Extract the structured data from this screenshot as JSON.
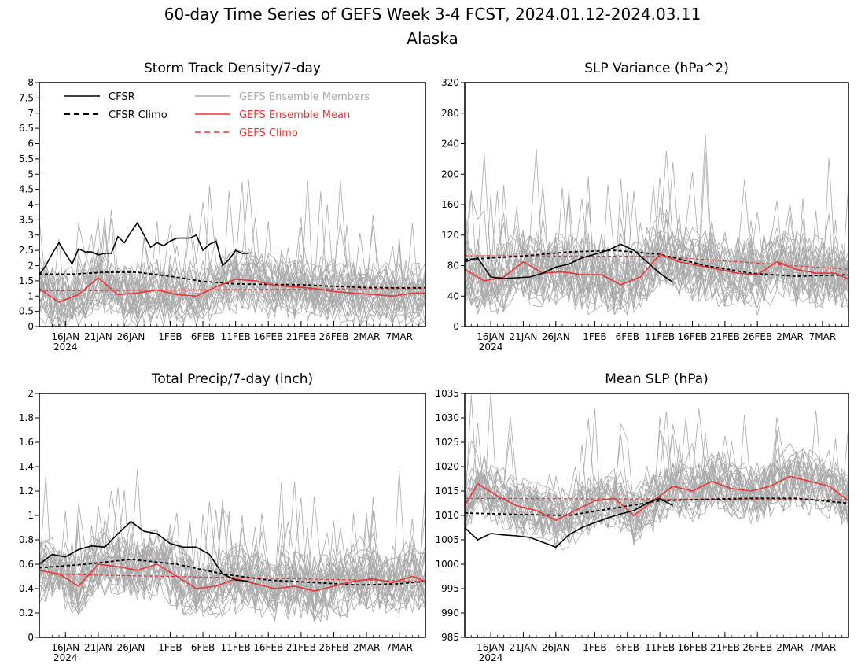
{
  "title": "60-day Time Series of GEFS Week 3-4 FCST, 2024.01.12-2024.03.11",
  "subtitle": "Alaska",
  "colors": {
    "cfsr": "#000000",
    "members": "#aaaaaa",
    "ensemble_mean": "#ee3333",
    "gefs_climo": "#ee3333",
    "frame": "#000000"
  },
  "legend": {
    "cfsr": "CFSR",
    "cfsr_climo": "CFSR Climo",
    "members": "GEFS Ensemble Members",
    "ensemble_mean": "GEFS Ensemble Mean",
    "gefs_climo": "GEFS Climo"
  },
  "x_axis": {
    "days": 60,
    "start_date": "2024-01-12",
    "tick_labels": [
      "16JAN",
      "21JAN",
      "26JAN",
      "1FEB",
      "6FEB",
      "11FEB",
      "16FEB",
      "21FEB",
      "26FEB",
      "2MAR",
      "7MAR"
    ],
    "tick_dates": [
      "2024-01-16",
      "2024-01-21",
      "2024-01-26",
      "2024-02-01",
      "2024-02-06",
      "2024-02-11",
      "2024-02-16",
      "2024-02-21",
      "2024-02-26",
      "2024-03-02",
      "2024-03-07"
    ],
    "year_label": "2024"
  },
  "chart_data": [
    {
      "type": "line",
      "title": "Storm Track Density/7-day",
      "ylim": [
        0,
        8
      ],
      "yticks": [
        "0",
        "0.5",
        "1",
        "1.5",
        "2",
        "2.5",
        "3",
        "3.5",
        "4",
        "4.5",
        "5",
        "5.5",
        "6",
        "6.5",
        "7",
        "7.5",
        "8"
      ],
      "legend_placement": "top-left",
      "members": {
        "count": 30,
        "mean_ref": "ensemble_mean",
        "spread": 0.85,
        "min": 0
      },
      "series": [
        {
          "key": "cfsr",
          "name": "CFSR",
          "x": [
            "2024-01-12",
            "2024-01-13",
            "2024-01-14",
            "2024-01-15",
            "2024-01-16",
            "2024-01-17",
            "2024-01-18",
            "2024-01-19",
            "2024-01-20",
            "2024-01-21",
            "2024-01-22",
            "2024-01-23",
            "2024-01-24",
            "2024-01-25",
            "2024-01-26",
            "2024-01-27",
            "2024-01-28",
            "2024-01-29",
            "2024-01-30",
            "2024-01-31",
            "2024-02-01",
            "2024-02-02",
            "2024-02-03",
            "2024-02-04",
            "2024-02-05",
            "2024-02-06",
            "2024-02-07",
            "2024-02-08",
            "2024-02-09",
            "2024-02-10",
            "2024-02-11",
            "2024-02-12",
            "2024-02-13"
          ],
          "y": [
            1.7,
            2.0,
            2.4,
            2.75,
            2.4,
            2.05,
            2.55,
            2.45,
            2.45,
            2.35,
            2.4,
            2.4,
            2.95,
            2.75,
            3.1,
            3.4,
            3.0,
            2.6,
            2.75,
            2.65,
            2.8,
            2.9,
            2.9,
            2.9,
            3.0,
            2.5,
            2.7,
            2.8,
            2.0,
            2.2,
            2.5,
            2.4,
            2.4
          ]
        },
        {
          "key": "cfsr_climo",
          "name": "CFSR Climo",
          "x": [
            "2024-01-12",
            "2024-01-17",
            "2024-01-22",
            "2024-01-27",
            "2024-02-01",
            "2024-02-06",
            "2024-02-11",
            "2024-02-16",
            "2024-02-21",
            "2024-02-26",
            "2024-03-02",
            "2024-03-07",
            "2024-03-11"
          ],
          "y": [
            1.72,
            1.72,
            1.78,
            1.78,
            1.65,
            1.48,
            1.4,
            1.38,
            1.37,
            1.32,
            1.28,
            1.27,
            1.27
          ]
        },
        {
          "key": "ensemble_mean",
          "name": "GEFS Ensemble Mean",
          "x": [
            "2024-01-12",
            "2024-01-15",
            "2024-01-18",
            "2024-01-21",
            "2024-01-24",
            "2024-01-27",
            "2024-01-30",
            "2024-02-02",
            "2024-02-05",
            "2024-02-08",
            "2024-02-11",
            "2024-02-14",
            "2024-02-17",
            "2024-02-20",
            "2024-02-23",
            "2024-02-26",
            "2024-02-29",
            "2024-03-03",
            "2024-03-06",
            "2024-03-09",
            "2024-03-11"
          ],
          "y": [
            1.25,
            0.8,
            1.05,
            1.6,
            1.05,
            1.1,
            1.2,
            1.05,
            1.0,
            1.3,
            1.55,
            1.5,
            1.35,
            1.3,
            1.25,
            1.15,
            1.1,
            1.05,
            1.0,
            1.1,
            1.1
          ]
        },
        {
          "key": "gefs_climo",
          "name": "GEFS Climo",
          "x": [
            "2024-01-12",
            "2024-03-11"
          ],
          "y": [
            1.17,
            1.25
          ]
        }
      ]
    },
    {
      "type": "line",
      "title": "SLP Variance (hPa^2)",
      "ylim": [
        0,
        320
      ],
      "yticks": [
        "0",
        "40",
        "80",
        "120",
        "160",
        "200",
        "240",
        "280",
        "320"
      ],
      "members": {
        "count": 30,
        "mean_ref": "ensemble_mean",
        "spread": 40,
        "min": 15
      },
      "series": [
        {
          "key": "cfsr",
          "name": "CFSR",
          "x": [
            "2024-01-12",
            "2024-01-14",
            "2024-01-16",
            "2024-01-18",
            "2024-01-20",
            "2024-01-22",
            "2024-01-24",
            "2024-01-26",
            "2024-01-28",
            "2024-01-30",
            "2024-02-01",
            "2024-02-03",
            "2024-02-05",
            "2024-02-07",
            "2024-02-09",
            "2024-02-11",
            "2024-02-13"
          ],
          "y": [
            85,
            90,
            65,
            63,
            64,
            65,
            70,
            78,
            82,
            90,
            95,
            100,
            108,
            100,
            85,
            70,
            58
          ]
        },
        {
          "key": "cfsr_climo",
          "name": "CFSR Climo",
          "x": [
            "2024-01-12",
            "2024-01-20",
            "2024-01-28",
            "2024-02-04",
            "2024-02-11",
            "2024-02-18",
            "2024-02-25",
            "2024-03-03",
            "2024-03-11"
          ],
          "y": [
            88,
            92,
            98,
            100,
            95,
            80,
            70,
            66,
            68
          ]
        },
        {
          "key": "ensemble_mean",
          "name": "GEFS Ensemble Mean",
          "x": [
            "2024-01-12",
            "2024-01-15",
            "2024-01-18",
            "2024-01-21",
            "2024-01-24",
            "2024-01-27",
            "2024-01-30",
            "2024-02-02",
            "2024-02-05",
            "2024-02-08",
            "2024-02-11",
            "2024-02-14",
            "2024-02-17",
            "2024-02-20",
            "2024-02-23",
            "2024-02-26",
            "2024-02-29",
            "2024-03-03",
            "2024-03-06",
            "2024-03-09",
            "2024-03-11"
          ],
          "y": [
            75,
            60,
            65,
            85,
            70,
            72,
            68,
            68,
            55,
            65,
            95,
            85,
            80,
            75,
            70,
            68,
            85,
            75,
            70,
            70,
            62
          ]
        },
        {
          "key": "gefs_climo",
          "name": "GEFS Climo",
          "x": [
            "2024-01-12",
            "2024-02-11",
            "2024-03-11"
          ],
          "y": [
            93,
            92,
            75
          ]
        }
      ]
    },
    {
      "type": "line",
      "title": "Total Precip/7-day (inch)",
      "ylim": [
        0,
        2
      ],
      "yticks": [
        "0",
        "0.2",
        "0.4",
        "0.6",
        "0.8",
        "1",
        "1.2",
        "1.4",
        "1.6",
        "1.8",
        "2"
      ],
      "members": {
        "count": 30,
        "mean_ref": "ensemble_mean",
        "spread": 0.22,
        "min": 0.05
      },
      "series": [
        {
          "key": "cfsr",
          "name": "CFSR",
          "x": [
            "2024-01-12",
            "2024-01-14",
            "2024-01-16",
            "2024-01-18",
            "2024-01-20",
            "2024-01-22",
            "2024-01-24",
            "2024-01-26",
            "2024-01-28",
            "2024-01-30",
            "2024-02-01",
            "2024-02-03",
            "2024-02-05",
            "2024-02-07",
            "2024-02-09",
            "2024-02-11",
            "2024-02-13"
          ],
          "y": [
            0.6,
            0.68,
            0.66,
            0.72,
            0.75,
            0.74,
            0.85,
            0.95,
            0.87,
            0.85,
            0.77,
            0.74,
            0.74,
            0.68,
            0.52,
            0.47,
            0.46
          ]
        },
        {
          "key": "cfsr_climo",
          "name": "CFSR Climo",
          "x": [
            "2024-01-12",
            "2024-01-19",
            "2024-01-26",
            "2024-02-02",
            "2024-02-09",
            "2024-02-16",
            "2024-02-23",
            "2024-03-01",
            "2024-03-07",
            "2024-03-11"
          ],
          "y": [
            0.57,
            0.6,
            0.64,
            0.6,
            0.52,
            0.47,
            0.45,
            0.43,
            0.44,
            0.46
          ]
        },
        {
          "key": "ensemble_mean",
          "name": "GEFS Ensemble Mean",
          "x": [
            "2024-01-12",
            "2024-01-15",
            "2024-01-18",
            "2024-01-21",
            "2024-01-24",
            "2024-01-27",
            "2024-01-30",
            "2024-02-02",
            "2024-02-05",
            "2024-02-08",
            "2024-02-11",
            "2024-02-14",
            "2024-02-17",
            "2024-02-20",
            "2024-02-23",
            "2024-02-26",
            "2024-02-29",
            "2024-03-03",
            "2024-03-06",
            "2024-03-09",
            "2024-03-11"
          ],
          "y": [
            0.55,
            0.52,
            0.42,
            0.6,
            0.58,
            0.55,
            0.6,
            0.5,
            0.4,
            0.42,
            0.48,
            0.44,
            0.4,
            0.42,
            0.38,
            0.42,
            0.46,
            0.48,
            0.45,
            0.5,
            0.46
          ]
        },
        {
          "key": "gefs_climo",
          "name": "GEFS Climo",
          "x": [
            "2024-01-12",
            "2024-03-11"
          ],
          "y": [
            0.52,
            0.46
          ]
        }
      ]
    },
    {
      "type": "line",
      "title": "Mean SLP (hPa)",
      "ylim": [
        985,
        1035
      ],
      "yticks": [
        "985",
        "990",
        "995",
        "1000",
        "1005",
        "1010",
        "1015",
        "1020",
        "1025",
        "1030",
        "1035"
      ],
      "members": {
        "count": 30,
        "mean_ref": "ensemble_mean",
        "spread": 5,
        "min": 996
      },
      "series": [
        {
          "key": "cfsr",
          "name": "CFSR",
          "x": [
            "2024-01-12",
            "2024-01-14",
            "2024-01-16",
            "2024-01-18",
            "2024-01-20",
            "2024-01-22",
            "2024-01-24",
            "2024-01-26",
            "2024-01-28",
            "2024-01-30",
            "2024-02-01",
            "2024-02-03",
            "2024-02-05",
            "2024-02-07",
            "2024-02-09",
            "2024-02-11",
            "2024-02-13"
          ],
          "y": [
            1007.5,
            1005,
            1006.3,
            1006,
            1005.8,
            1005.5,
            1004.5,
            1003.5,
            1006,
            1007.5,
            1008.5,
            1009.5,
            1010.3,
            1011,
            1012.5,
            1013.5,
            1012
          ]
        },
        {
          "key": "cfsr_climo",
          "name": "CFSR Climo",
          "x": [
            "2024-01-12",
            "2024-01-20",
            "2024-01-28",
            "2024-02-04",
            "2024-02-11",
            "2024-02-18",
            "2024-02-25",
            "2024-03-03",
            "2024-03-11"
          ],
          "y": [
            1010.5,
            1010.2,
            1010,
            1011.5,
            1013,
            1013.3,
            1013.5,
            1013.5,
            1012.5
          ]
        },
        {
          "key": "ensemble_mean",
          "name": "GEFS Ensemble Mean",
          "x": [
            "2024-01-12",
            "2024-01-14",
            "2024-01-17",
            "2024-01-20",
            "2024-01-23",
            "2024-01-26",
            "2024-01-29",
            "2024-02-01",
            "2024-02-04",
            "2024-02-07",
            "2024-02-10",
            "2024-02-13",
            "2024-02-16",
            "2024-02-19",
            "2024-02-22",
            "2024-02-25",
            "2024-02-28",
            "2024-03-02",
            "2024-03-05",
            "2024-03-08",
            "2024-03-11"
          ],
          "y": [
            1012,
            1016.5,
            1014,
            1012,
            1011,
            1009,
            1011,
            1013,
            1013.5,
            1010,
            1013,
            1016,
            1015,
            1017,
            1015.5,
            1015,
            1016,
            1018,
            1017,
            1016,
            1013
          ]
        },
        {
          "key": "gefs_climo",
          "name": "GEFS Climo",
          "x": [
            "2024-01-12",
            "2024-03-11"
          ],
          "y": [
            1013.5,
            1013.2
          ]
        }
      ]
    }
  ]
}
